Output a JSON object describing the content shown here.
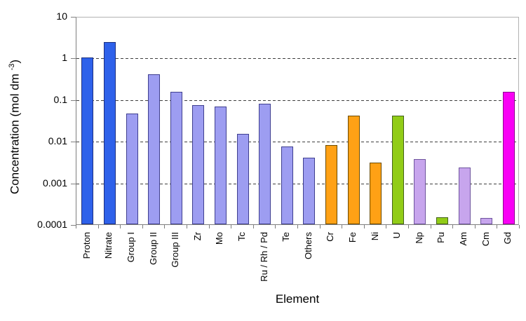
{
  "chart_data": {
    "type": "bar",
    "title": "",
    "xlabel": "Element",
    "ylabel": "Concentration (mol dm^-3)",
    "ylabel_parts": {
      "pre": "Concentration (mol dm ",
      "sup": "-3",
      "post": ")"
    },
    "yscale": "log",
    "ylim": [
      0.0001,
      10
    ],
    "ytick_labels": [
      "10",
      "1",
      "0.1",
      "0.01",
      "0.001",
      "0.0001"
    ],
    "ytick_values": [
      10,
      1,
      0.1,
      0.01,
      0.001,
      0.0001
    ],
    "gridline_values": [
      1,
      0.1,
      0.01,
      0.001
    ],
    "grid_style": "dashed-horizontal",
    "bar_label_rotation_deg": 90,
    "legend": null,
    "categories": [
      "Proton",
      "Nitrate",
      "Group I",
      "Group II",
      "Group III",
      "Zr",
      "Mo",
      "Tc",
      "Ru / Rh / Pd",
      "Te",
      "Others",
      "Cr",
      "Fe",
      "Ni",
      "U",
      "Np",
      "Pu",
      "Am",
      "Cm",
      "Gd"
    ],
    "values": [
      1.0,
      2.4,
      0.045,
      0.4,
      0.15,
      0.073,
      0.067,
      0.015,
      0.078,
      0.0075,
      0.004,
      0.008,
      0.04,
      0.003,
      0.04,
      0.0037,
      0.00015,
      0.0023,
      0.00014,
      0.15
    ],
    "bar_color_keys": [
      "blue",
      "blue",
      "periwinkle",
      "periwinkle",
      "periwinkle",
      "periwinkle",
      "periwinkle",
      "periwinkle",
      "periwinkle",
      "periwinkle",
      "periwinkle",
      "orange",
      "orange",
      "orange",
      "green",
      "lavender",
      "green",
      "lavender",
      "lavender",
      "magenta"
    ],
    "palette": {
      "blue": {
        "fill": "#2E61EA",
        "border": "#1C2F80"
      },
      "periwinkle": {
        "fill": "#9D9DF1",
        "border": "#3F3F8F"
      },
      "orange": {
        "fill": "#FFA115",
        "border": "#6B4A00"
      },
      "green": {
        "fill": "#91CC17",
        "border": "#44611B"
      },
      "lavender": {
        "fill": "#C7A5ED",
        "border": "#6F559E"
      },
      "magenta": {
        "fill": "#F900F5",
        "border": "#8E0090"
      }
    },
    "colors": {
      "background": "#FFFFFF",
      "axis": "#7F7F7F",
      "frame": "#B2B2B2",
      "grid": "#3F3F3F",
      "text": "#000000"
    }
  }
}
